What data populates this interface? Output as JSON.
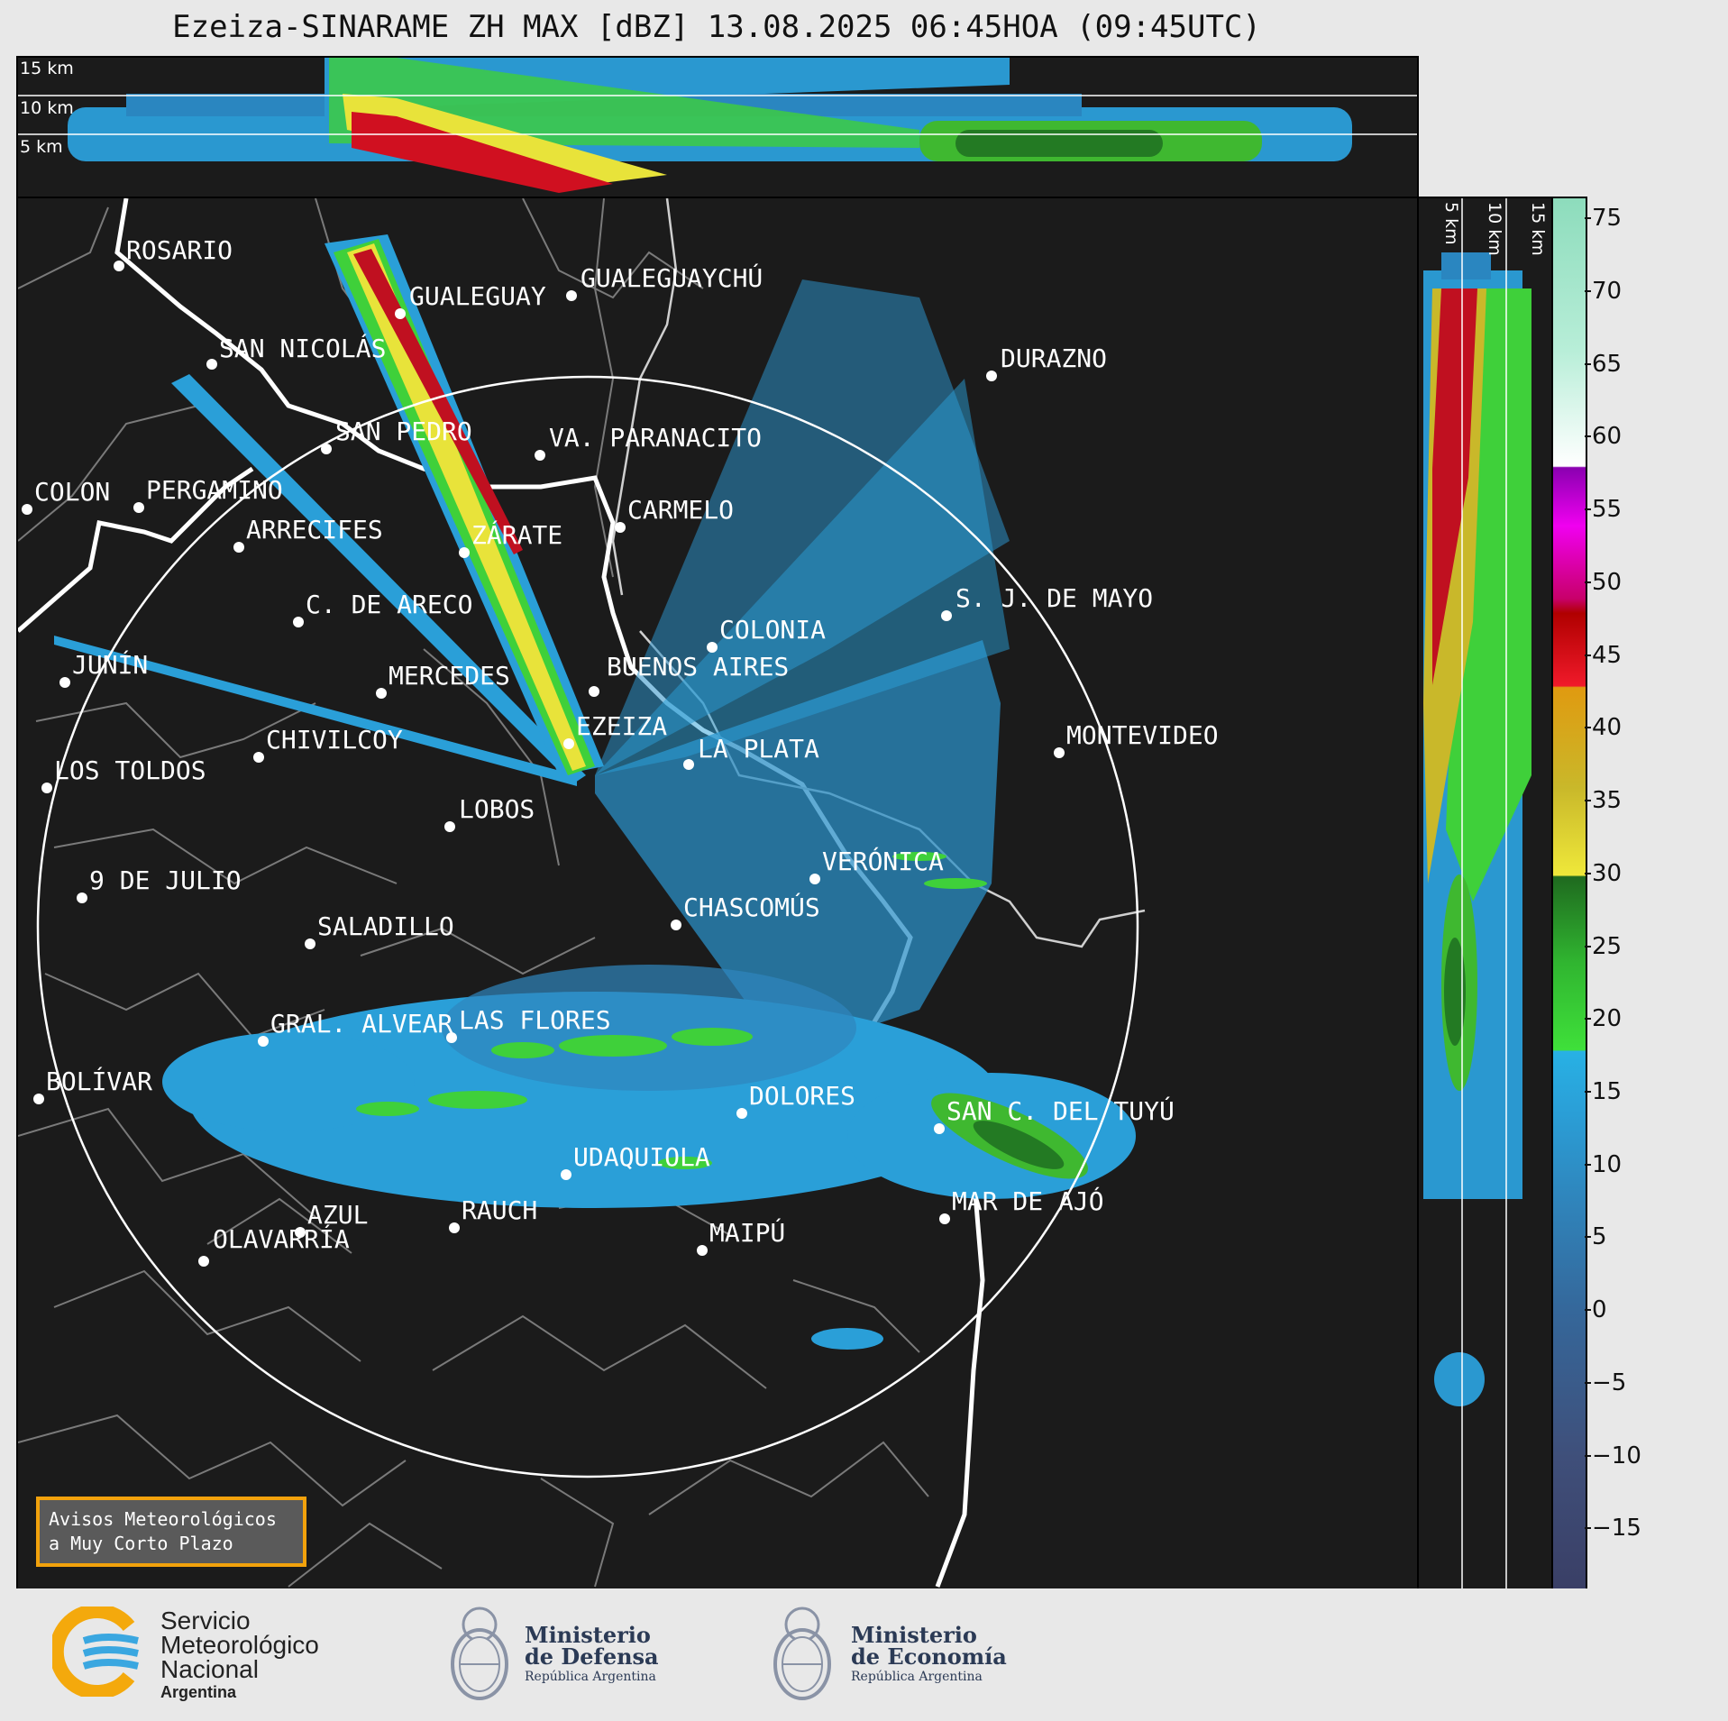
{
  "title": "Ezeiza-SINARAME ZH MAX [dBZ] 13.08.2025 06:45HOA (09:45UTC)",
  "top_panel": {
    "altitude_labels": [
      "15 km",
      "10 km",
      "5 km"
    ]
  },
  "side_panel": {
    "altitude_labels": [
      "5 km",
      "10 km",
      "15 km"
    ]
  },
  "colorbar": {
    "unit": "dBZ",
    "ticks": [
      "75",
      "70",
      "65",
      "60",
      "55",
      "50",
      "45",
      "40",
      "35",
      "30",
      "25",
      "20",
      "15",
      "10",
      "5",
      "0",
      "−5",
      "−10",
      "−15"
    ],
    "range": [
      -19,
      76.5
    ],
    "stops": [
      {
        "v": -19,
        "c": "#3a3f66"
      },
      {
        "v": -10,
        "c": "#3f4f7a"
      },
      {
        "v": 0,
        "c": "#35679a"
      },
      {
        "v": 8,
        "c": "#2f86bd"
      },
      {
        "v": 14,
        "c": "#2aa0d8"
      },
      {
        "v": 17.9,
        "c": "#28b1e4"
      },
      {
        "v": 18,
        "c": "#3fe03a"
      },
      {
        "v": 24,
        "c": "#30b530"
      },
      {
        "v": 29.9,
        "c": "#1f6a1f"
      },
      {
        "v": 30,
        "c": "#efe83a"
      },
      {
        "v": 36,
        "c": "#c9b82a"
      },
      {
        "v": 42.9,
        "c": "#e09a10"
      },
      {
        "v": 43,
        "c": "#f01a2a"
      },
      {
        "v": 48,
        "c": "#b00000"
      },
      {
        "v": 49,
        "c": "#c8006a"
      },
      {
        "v": 54,
        "c": "#f000f0"
      },
      {
        "v": 58,
        "c": "#8a00b0"
      },
      {
        "v": 58.1,
        "c": "#ffffff"
      },
      {
        "v": 66,
        "c": "#b8eed8"
      },
      {
        "v": 76.5,
        "c": "#8ddcbc"
      }
    ]
  },
  "map": {
    "cities": [
      {
        "name": "ROSARIO"
      },
      {
        "name": "GUALEGUAYCHÚ"
      },
      {
        "name": "GUALEGUAY"
      },
      {
        "name": "SAN NICOLÁS"
      },
      {
        "name": "DURAZNO"
      },
      {
        "name": "SAN PEDRO"
      },
      {
        "name": "VA. PARANACITO"
      },
      {
        "name": "COLON"
      },
      {
        "name": "PERGAMINO"
      },
      {
        "name": "CARMELO"
      },
      {
        "name": "ARRECIFES"
      },
      {
        "name": "ZÁRATE"
      },
      {
        "name": "S. J. DE MAYO"
      },
      {
        "name": "C. DE ARECO"
      },
      {
        "name": "COLONIA"
      },
      {
        "name": "JUNÍN"
      },
      {
        "name": "BUENOS AIRES"
      },
      {
        "name": "MERCEDES"
      },
      {
        "name": "EZEIZA"
      },
      {
        "name": "MONTEVIDEO"
      },
      {
        "name": "CHIVILCOY"
      },
      {
        "name": "LA PLATA"
      },
      {
        "name": "LOS TOLDOS"
      },
      {
        "name": "LOBOS"
      },
      {
        "name": "VERÓNICA"
      },
      {
        "name": "9 DE JULIO"
      },
      {
        "name": "CHASCOMÚS"
      },
      {
        "name": "SALADILLO"
      },
      {
        "name": "GRAL. ALVEAR"
      },
      {
        "name": "LAS FLORES"
      },
      {
        "name": "BOLÍVAR"
      },
      {
        "name": "DOLORES"
      },
      {
        "name": "SAN C. DEL TUYÚ"
      },
      {
        "name": "UDAQUIOLA"
      },
      {
        "name": "MAR DE AJÓ"
      },
      {
        "name": "AZUL"
      },
      {
        "name": "RAUCH"
      },
      {
        "name": "OLAVARRÍA"
      },
      {
        "name": "MAIPÚ"
      }
    ]
  },
  "warning_box": {
    "line1": "Avisos Meteorológicos",
    "line2": "a Muy Corto Plazo"
  },
  "footer": {
    "smn": {
      "line1": "Servicio",
      "line2": "Meteorológico",
      "line3": "Nacional",
      "line4": "Argentina"
    },
    "defensa": {
      "line1": "Ministerio",
      "line2": "de Defensa",
      "line3": "República Argentina"
    },
    "economia": {
      "line1": "Ministerio",
      "line2": "de Economía",
      "line3": "República Argentina"
    }
  }
}
